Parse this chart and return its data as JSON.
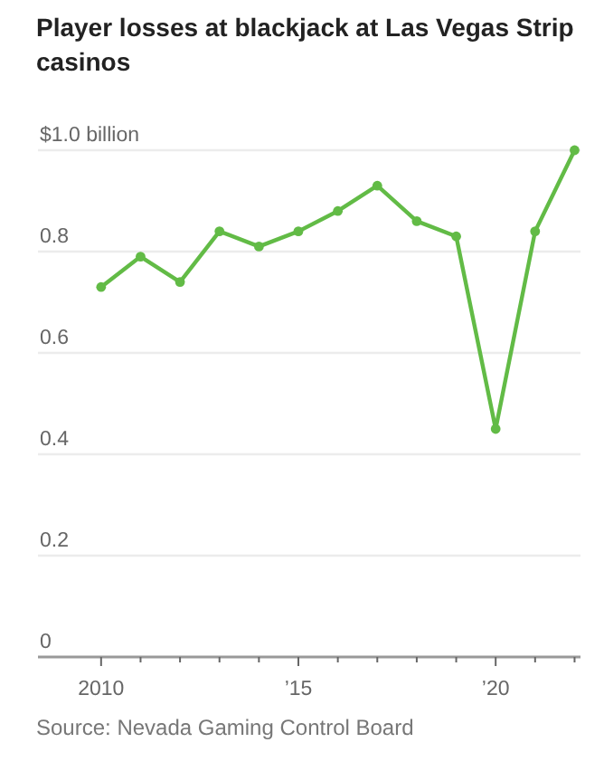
{
  "chart_data": {
    "type": "line",
    "title": "Player losses at blackjack at Las Vegas Strip casinos",
    "x": [
      2010,
      2011,
      2012,
      2013,
      2014,
      2015,
      2016,
      2017,
      2018,
      2019,
      2020,
      2021,
      2022
    ],
    "series": [
      {
        "color": "#62bb46",
        "values": [
          0.73,
          0.79,
          0.74,
          0.84,
          0.81,
          0.84,
          0.88,
          0.93,
          0.86,
          0.83,
          0.45,
          0.84,
          1.0
        ]
      }
    ],
    "xlim": [
      2008.4,
      2022.15
    ],
    "xticks": [
      {
        "value": 2010,
        "label": "2010"
      },
      {
        "value": 2011,
        "label": null
      },
      {
        "value": 2012,
        "label": null
      },
      {
        "value": 2013,
        "label": null
      },
      {
        "value": 2014,
        "label": null
      },
      {
        "value": 2015,
        "label": "’15"
      },
      {
        "value": 2016,
        "label": null
      },
      {
        "value": 2017,
        "label": null
      },
      {
        "value": 2018,
        "label": null
      },
      {
        "value": 2019,
        "label": null
      },
      {
        "value": 2020,
        "label": "’20"
      },
      {
        "value": 2021,
        "label": null
      },
      {
        "value": 2022,
        "label": null
      }
    ],
    "ylim": [
      0,
      1.0
    ],
    "yticks": [
      0,
      0.2,
      0.4,
      0.6,
      0.8,
      {
        "value": 1.0,
        "label": "$1.0 billion"
      }
    ],
    "grid": "y",
    "marker": "circle",
    "line_style": "solid",
    "annotations": [
      "Source: Nevada Gaming Control Board"
    ]
  }
}
